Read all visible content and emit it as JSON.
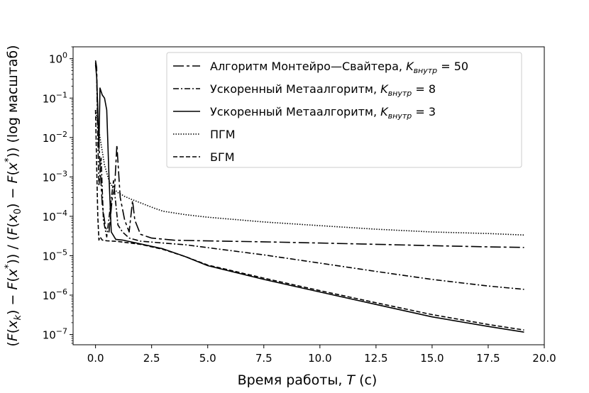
{
  "chart_data": {
    "type": "line",
    "xlabel": "Время работы, T (с)",
    "ylabel": "(F(x_k) − F(x*)) / (F(x_0) − F(x*)) (log масштаб)",
    "xlim": [
      -1.0,
      20.0
    ],
    "ylim": [
      5.5e-08,
      2.0
    ],
    "yscale": "log",
    "x_ticks": [
      "0.0",
      "2.5",
      "5.0",
      "7.5",
      "10.0",
      "12.5",
      "15.0",
      "17.5",
      "20.0"
    ],
    "y_ticks": [
      "10^0",
      "10^-1",
      "10^-2",
      "10^-3",
      "10^-4",
      "10^-5",
      "10^-6",
      "10^-7"
    ],
    "legend_position": "top-right",
    "series": [
      {
        "name": "Алгоритм Монтейро—Свайтера, K_внутр = 50",
        "legend_main": "Алгоритм Монтейро—Свайтера, ",
        "legend_k": "K",
        "legend_sub": "внутр",
        "legend_eq": " = 50",
        "dash": "15 4 4 4",
        "points": [
          [
            0.0,
            0.9
          ],
          [
            0.05,
            0.6
          ],
          [
            0.1,
            0.03
          ],
          [
            0.2,
            0.002
          ],
          [
            0.3,
            0.0002
          ],
          [
            0.45,
            5e-05
          ],
          [
            0.6,
            4e-05
          ],
          [
            0.75,
            0.0003
          ],
          [
            0.85,
            0.0005
          ],
          [
            0.95,
            0.0065
          ],
          [
            1.1,
            0.0003
          ],
          [
            1.3,
            8e-05
          ],
          [
            1.5,
            4e-05
          ],
          [
            1.65,
            0.00025
          ],
          [
            1.75,
            8e-05
          ],
          [
            2.0,
            3.5e-05
          ],
          [
            2.5,
            2.8e-05
          ],
          [
            3.5,
            2.48e-05
          ],
          [
            5.0,
            2.38e-05
          ],
          [
            7.5,
            2.25e-05
          ],
          [
            10.0,
            2.1e-05
          ],
          [
            12.5,
            1.95e-05
          ],
          [
            15.0,
            1.8e-05
          ],
          [
            17.5,
            1.68e-05
          ],
          [
            19.1,
            1.62e-05
          ]
        ]
      },
      {
        "name": "Ускоренный Метаалгоритм, K_внутр = 8",
        "legend_main": "Ускоренный Метаалгоритм, ",
        "legend_k": "K",
        "legend_sub": "внутр",
        "legend_eq": " = 8",
        "dash": "8 3 2 3",
        "points": [
          [
            0.0,
            0.8
          ],
          [
            0.05,
            0.4
          ],
          [
            0.1,
            0.01
          ],
          [
            0.15,
            0.0006
          ],
          [
            0.25,
            0.003
          ],
          [
            0.35,
            8e-05
          ],
          [
            0.5,
            3e-05
          ],
          [
            0.8,
            0.0008
          ],
          [
            1.0,
            6e-05
          ],
          [
            1.2,
            4e-05
          ],
          [
            1.5,
            2.8e-05
          ],
          [
            2.0,
            2.35e-05
          ],
          [
            3.0,
            2.1e-05
          ],
          [
            4.0,
            1.9e-05
          ],
          [
            5.0,
            1.6e-05
          ],
          [
            7.5,
            1.05e-05
          ],
          [
            10.0,
            6.5e-06
          ],
          [
            12.5,
            4e-06
          ],
          [
            15.0,
            2.5e-06
          ],
          [
            17.5,
            1.7e-06
          ],
          [
            19.1,
            1.4e-06
          ]
        ]
      },
      {
        "name": "Ускоренный Метаалгоритм, K_внутр = 3",
        "legend_main": "Ускоренный Метаалгоритм, ",
        "legend_k": "K",
        "legend_sub": "внутр",
        "legend_eq": " = 3",
        "dash": "",
        "points": [
          [
            0.0,
            0.7
          ],
          [
            0.05,
            0.35
          ],
          [
            0.1,
            0.05
          ],
          [
            0.15,
            0.005
          ],
          [
            0.2,
            0.18
          ],
          [
            0.3,
            0.12
          ],
          [
            0.4,
            0.1
          ],
          [
            0.5,
            0.05
          ],
          [
            0.6,
            0.001
          ],
          [
            0.7,
            4e-05
          ],
          [
            0.9,
            2.6e-05
          ],
          [
            1.2,
            2.5e-05
          ],
          [
            2.0,
            2e-05
          ],
          [
            3.0,
            1.5e-05
          ],
          [
            4.0,
            9.5e-06
          ],
          [
            5.0,
            5.6e-06
          ],
          [
            7.5,
            2.5e-06
          ],
          [
            10.0,
            1.2e-06
          ],
          [
            12.5,
            5.8e-07
          ],
          [
            15.0,
            2.8e-07
          ],
          [
            17.5,
            1.6e-07
          ],
          [
            19.1,
            1.15e-07
          ]
        ]
      },
      {
        "name": "ПГМ",
        "legend_main": "ПГМ",
        "dash": "1.5 2",
        "points": [
          [
            0.0,
            0.05
          ],
          [
            0.2,
            0.01
          ],
          [
            0.4,
            0.002
          ],
          [
            0.6,
            0.0008
          ],
          [
            0.8,
            0.0005
          ],
          [
            1.0,
            0.0004
          ],
          [
            1.3,
            0.00032
          ],
          [
            1.6,
            0.00027
          ],
          [
            2.0,
            0.00022
          ],
          [
            2.5,
            0.00017
          ],
          [
            3.0,
            0.000135
          ],
          [
            4.0,
            0.00011
          ],
          [
            5.0,
            9.5e-05
          ],
          [
            7.5,
            7.2e-05
          ],
          [
            10.0,
            5.8e-05
          ],
          [
            12.5,
            4.7e-05
          ],
          [
            15.0,
            4e-05
          ],
          [
            17.5,
            3.65e-05
          ],
          [
            19.1,
            3.35e-05
          ]
        ]
      },
      {
        "name": "БГМ",
        "legend_main": "БГМ",
        "dash": "6 3",
        "points": [
          [
            0.0,
            0.05
          ],
          [
            0.05,
            0.002
          ],
          [
            0.1,
            0.0001
          ],
          [
            0.15,
            2.5e-05
          ],
          [
            0.2,
            3e-05
          ],
          [
            0.3,
            2.5e-05
          ],
          [
            0.5,
            2.4e-05
          ],
          [
            1.0,
            2.3e-05
          ],
          [
            2.0,
            1.95e-05
          ],
          [
            3.0,
            1.45e-05
          ],
          [
            4.0,
            9.5e-06
          ],
          [
            5.0,
            5.8e-06
          ],
          [
            7.5,
            2.7e-06
          ],
          [
            10.0,
            1.3e-06
          ],
          [
            12.5,
            6.4e-07
          ],
          [
            15.0,
            3.2e-07
          ],
          [
            17.5,
            1.8e-07
          ],
          [
            19.1,
            1.3e-07
          ]
        ]
      }
    ]
  }
}
